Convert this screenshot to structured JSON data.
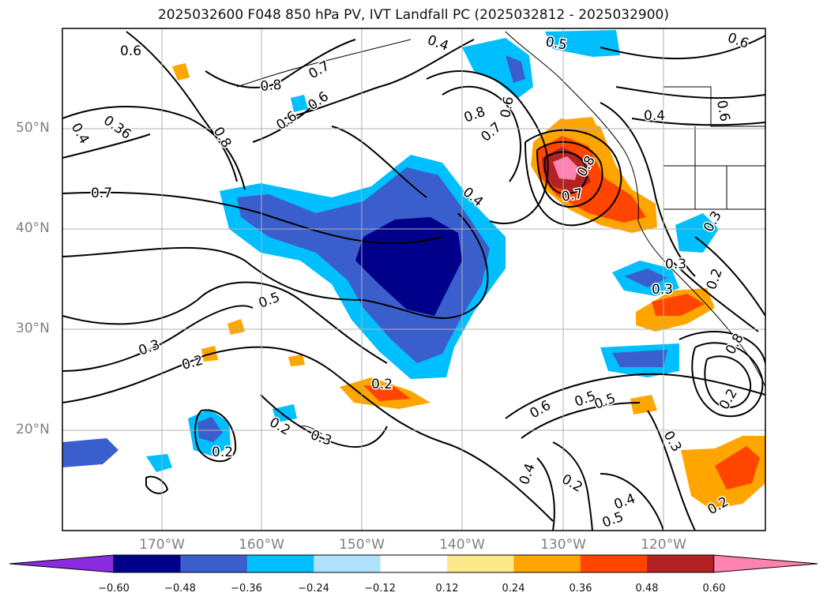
{
  "title": "2025032600 F048 850 hPa PV, IVT Landfall PC (2025032812 - 2025032900)",
  "map": {
    "lon_range": [
      -180,
      -110
    ],
    "lat_range": [
      10,
      60
    ],
    "lat_ticks": [
      {
        "value": 50,
        "label": "50°N"
      },
      {
        "value": 40,
        "label": "40°N"
      },
      {
        "value": 30,
        "label": "30°N"
      },
      {
        "value": 20,
        "label": "20°N"
      }
    ],
    "lon_ticks": [
      {
        "value": -170,
        "label": "170°W"
      },
      {
        "value": -160,
        "label": "160°W"
      },
      {
        "value": -150,
        "label": "150°W"
      },
      {
        "value": -140,
        "label": "140°W"
      },
      {
        "value": -130,
        "label": "130°W"
      },
      {
        "value": -120,
        "label": "120°W"
      }
    ],
    "contour_labels": [
      "0.6",
      "0.8",
      "0.7",
      "0.6",
      "0.4",
      "0.36",
      "0.8",
      "0.6",
      "0.7",
      "0.5",
      "0.4",
      "0.5",
      "0.8",
      "0.7",
      "0.6",
      "0.6",
      "0.8",
      "0.7",
      "0.4",
      "0.4",
      "0.5",
      "0.3",
      "0.3",
      "0.3",
      "0.2",
      "0.2",
      "0.3",
      "0.2",
      "0.2",
      "0.6",
      "0.5",
      "0.4",
      "0.2",
      "0.4",
      "0.5",
      "0.3",
      "0.2",
      "0.3",
      "0.2",
      "0.2",
      "0.8",
      "0.6"
    ]
  },
  "colorbar": {
    "colors": [
      "#8a2be2",
      "#00008b",
      "#3a5fcd",
      "#00bfff",
      "#b0e2ff",
      "#ffffff",
      "#fde98a",
      "#ffa500",
      "#ff4500",
      "#b22222",
      "#ff83b0"
    ],
    "tick_labels": [
      "−0.60",
      "−0.48",
      "−0.36",
      "−0.24",
      "−0.12",
      "0.12",
      "0.24",
      "0.36",
      "0.48",
      "0.60"
    ]
  }
}
